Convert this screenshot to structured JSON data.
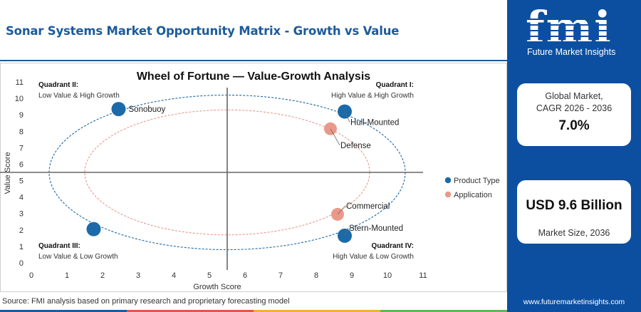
{
  "header": {
    "title": "Sonar Systems Market Opportunity Matrix - Growth vs Value"
  },
  "sidebar": {
    "logo_text": "fmi",
    "logo_subtitle": "Future Market Insights",
    "cagr_label_line1": "Global Market,",
    "cagr_label_line2": "CAGR 2026 - 2036",
    "cagr_value": "7.0%",
    "market_size_value": "USD 9.6 Billion",
    "market_size_label": "Market Size, 2036",
    "website": "www.futuremarketinsights.com"
  },
  "footer": {
    "source": "Source: FMI analysis based on primary research and proprietary forecasting model",
    "bar_colors": [
      "#1c5b9c",
      "#e2574c",
      "#f2b134",
      "#5cb85c"
    ]
  },
  "chart_data": {
    "type": "scatter",
    "title": "Wheel of Fortune — Value-Growth Analysis",
    "xlabel": "Growth Score",
    "ylabel": "Value Score",
    "xlim": [
      0,
      11
    ],
    "ylim": [
      0,
      11
    ],
    "xticks": [
      0,
      1,
      2,
      3,
      4,
      5,
      6,
      7,
      8,
      9,
      10,
      11
    ],
    "yticks": [
      0,
      1,
      2,
      3,
      4,
      5,
      6,
      7,
      8,
      9,
      10,
      11
    ],
    "grid": false,
    "quadrant_dividers": {
      "x": 5.5,
      "y": 5.5
    },
    "quadrants": [
      {
        "title": "Quadrant I:",
        "subtitle": "High Value & High Growth",
        "corner": "top-right"
      },
      {
        "title": "Quadrant II:",
        "subtitle": "Low Value & High Growth",
        "corner": "top-left"
      },
      {
        "title": "Quadrant III:",
        "subtitle": "Low Value & Low Growth",
        "corner": "bottom-left"
      },
      {
        "title": "Quadrant IV:",
        "subtitle": "High Value & Low Growth",
        "corner": "bottom-right"
      }
    ],
    "ellipses": [
      {
        "series": "Product Type",
        "cx": 5.5,
        "cy": 5.5,
        "rx": 5.0,
        "ry": 4.7
      },
      {
        "series": "Application",
        "cx": 5.5,
        "cy": 5.5,
        "rx": 4.0,
        "ry": 3.8
      }
    ],
    "series": [
      {
        "name": "Product Type",
        "color": "#1c6aa8",
        "points": [
          {
            "label": "Sonobuoy",
            "x": 2.45,
            "y": 9.35
          },
          {
            "label": "Hull-Mounted",
            "x": 8.8,
            "y": 9.2
          },
          {
            "label": "Stern-Mounted",
            "x": 8.8,
            "y": 1.65
          },
          {
            "label": "",
            "x": 1.75,
            "y": 2.05
          }
        ]
      },
      {
        "name": "Application",
        "color": "#e9998a",
        "points": [
          {
            "label": "Defense",
            "x": 8.4,
            "y": 8.15
          },
          {
            "label": "Commercial",
            "x": 8.6,
            "y": 2.95
          }
        ]
      }
    ],
    "legend_position": "right"
  }
}
